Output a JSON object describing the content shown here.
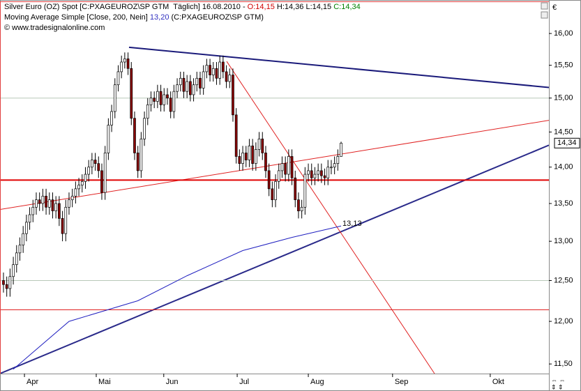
{
  "chart_data": {
    "type": "candlestick",
    "header": {
      "title": "Silver Euro (OZ) Spot [C:PXAGEUROZ\\SP GTM  Täglich] 16.08.2010 -",
      "o": "O:14,15",
      "h": "H:14,36",
      "l": "L:14,15",
      "c": "C:14,34",
      "ma_name": "Moving Average Simple [Close, 200, Nein]",
      "ma_value": "13,20",
      "ma_source": "(C:PXAGEUROZ\\SP GTM)",
      "copyright": "© www.tradesignalonline.com"
    },
    "unit": "€",
    "log": true,
    "ylim": [
      11.39,
      16.51
    ],
    "yticks": [
      {
        "value": 11.5,
        "label": "11,50"
      },
      {
        "value": 12,
        "label": "12,00"
      },
      {
        "value": 12.5,
        "label": "12,50"
      },
      {
        "value": 13,
        "label": "13,00"
      },
      {
        "value": 13.5,
        "label": "13,50"
      },
      {
        "value": 14,
        "label": "14,00"
      },
      {
        "value": 14.5,
        "label": "14,50"
      },
      {
        "value": 15,
        "label": "15,00"
      },
      {
        "value": 15.5,
        "label": "15,50"
      },
      {
        "value": 16,
        "label": "16,00"
      }
    ],
    "xlim": [
      -1.06,
      166.4
    ],
    "xticks": [
      {
        "value": 6.4,
        "label": "Apr"
      },
      {
        "value": 28.3,
        "label": "Mai"
      },
      {
        "value": 48.9,
        "label": "Jun"
      },
      {
        "value": 71.3,
        "label": "Jul"
      },
      {
        "value": 93,
        "label": "Aug"
      },
      {
        "value": 118.7,
        "label": "Sep"
      },
      {
        "value": 148.5,
        "label": "Okt"
      }
    ],
    "up_color": "#ffffff",
    "down_color": "#8b0000",
    "outline_color": "#000000",
    "x": [
      0,
      1,
      2,
      3,
      4,
      5,
      6,
      7,
      8,
      9,
      10,
      11,
      12,
      13,
      14,
      15,
      16,
      17,
      18,
      19,
      20,
      21,
      22,
      23,
      24,
      25,
      26,
      27,
      28,
      29,
      30,
      31,
      32,
      33,
      34,
      35,
      36,
      37,
      38,
      39,
      40,
      41,
      42,
      43,
      44,
      45,
      46,
      47,
      48,
      49,
      50,
      51,
      52,
      53,
      54,
      55,
      56,
      57,
      58,
      59,
      60,
      61,
      62,
      63,
      64,
      65,
      66,
      67,
      68,
      69,
      70,
      71,
      72,
      73,
      74,
      75,
      76,
      77,
      78,
      79,
      80,
      81,
      82,
      83,
      84,
      85,
      86,
      87,
      88,
      89,
      90,
      91,
      92,
      93,
      94,
      95,
      96,
      97,
      98,
      99,
      100,
      101,
      102,
      103
    ],
    "open": [
      12.5,
      12.45,
      12.4,
      12.55,
      12.7,
      12.85,
      12.95,
      13.1,
      13.25,
      13.35,
      13.45,
      13.55,
      13.5,
      13.6,
      13.45,
      13.55,
      13.4,
      13.5,
      13.3,
      13.1,
      13.45,
      13.55,
      13.6,
      13.7,
      13.75,
      13.8,
      13.9,
      14.0,
      14.1,
      14.05,
      13.95,
      13.65,
      14.2,
      14.6,
      14.8,
      15.2,
      15.4,
      15.55,
      15.6,
      15.45,
      14.7,
      14.2,
      13.95,
      14.4,
      14.7,
      14.9,
      15.0,
      14.95,
      15.1,
      14.9,
      15.05,
      15.0,
      14.8,
      15.1,
      15.2,
      15.3,
      15.1,
      15.25,
      15.05,
      15.2,
      15.3,
      15.15,
      15.4,
      15.5,
      15.35,
      15.45,
      15.3,
      15.55,
      15.4,
      15.25,
      15.35,
      14.75,
      14.15,
      14.05,
      14.2,
      14.1,
      14.3,
      14.05,
      14.25,
      14.4,
      14.2,
      13.95,
      13.7,
      13.55,
      13.8,
      13.95,
      14.05,
      13.9,
      14.15,
      13.85,
      13.55,
      13.4,
      13.45,
      13.9,
      13.95,
      13.85,
      13.9,
      13.95,
      13.88,
      13.85,
      14.0,
      14.0,
      14.05,
      14.15
    ],
    "high": [
      12.6,
      12.55,
      12.65,
      12.8,
      12.95,
      13.05,
      13.2,
      13.35,
      13.45,
      13.55,
      13.65,
      13.65,
      13.7,
      13.7,
      13.65,
      13.65,
      13.6,
      13.6,
      13.4,
      13.55,
      13.65,
      13.7,
      13.8,
      13.85,
      13.9,
      14.0,
      14.1,
      14.2,
      14.2,
      14.15,
      14.05,
      14.3,
      14.7,
      14.9,
      15.3,
      15.5,
      15.65,
      15.7,
      15.7,
      15.55,
      14.8,
      14.3,
      14.5,
      14.8,
      15.0,
      15.1,
      15.1,
      15.2,
      15.2,
      15.15,
      15.15,
      15.1,
      15.2,
      15.3,
      15.4,
      15.4,
      15.35,
      15.35,
      15.3,
      15.4,
      15.4,
      15.5,
      15.6,
      15.6,
      15.55,
      15.55,
      15.65,
      15.65,
      15.5,
      15.45,
      15.45,
      14.85,
      14.25,
      14.3,
      14.3,
      14.4,
      14.4,
      14.35,
      14.5,
      14.5,
      14.3,
      14.05,
      13.8,
      13.9,
      14.05,
      14.15,
      14.15,
      14.25,
      14.25,
      13.95,
      13.65,
      13.55,
      14.0,
      14.05,
      14.05,
      14.0,
      14.05,
      14.05,
      13.98,
      14.1,
      14.1,
      14.15,
      14.25,
      14.36
    ],
    "low": [
      12.35,
      12.3,
      12.3,
      12.45,
      12.6,
      12.75,
      12.85,
      13.0,
      13.15,
      13.25,
      13.35,
      13.4,
      13.4,
      13.35,
      13.35,
      13.3,
      13.3,
      13.2,
      13.0,
      13.0,
      13.35,
      13.45,
      13.5,
      13.6,
      13.65,
      13.7,
      13.8,
      13.9,
      13.95,
      13.85,
      13.55,
      13.55,
      14.1,
      14.5,
      14.7,
      15.1,
      15.3,
      15.45,
      15.35,
      14.6,
      14.1,
      13.85,
      13.85,
      14.3,
      14.6,
      14.8,
      14.85,
      14.85,
      14.8,
      14.8,
      14.9,
      14.7,
      14.7,
      15.0,
      15.1,
      15.0,
      15.0,
      14.95,
      14.95,
      15.1,
      15.05,
      15.05,
      15.3,
      15.25,
      15.25,
      15.2,
      15.2,
      15.3,
      15.15,
      15.15,
      14.65,
      14.05,
      13.95,
      13.95,
      14.0,
      14.0,
      13.95,
      13.95,
      14.15,
      14.1,
      13.85,
      13.6,
      13.45,
      13.45,
      13.7,
      13.85,
      13.8,
      13.8,
      13.75,
      13.45,
      13.3,
      13.3,
      13.35,
      13.8,
      13.75,
      13.75,
      13.8,
      13.78,
      13.75,
      13.75,
      13.9,
      13.9,
      13.95,
      14.15
    ],
    "close": [
      12.45,
      12.4,
      12.55,
      12.7,
      12.85,
      12.95,
      13.1,
      13.25,
      13.35,
      13.45,
      13.55,
      13.5,
      13.6,
      13.45,
      13.55,
      13.4,
      13.5,
      13.3,
      13.1,
      13.45,
      13.55,
      13.6,
      13.7,
      13.75,
      13.8,
      13.9,
      14.0,
      14.1,
      14.05,
      13.95,
      13.65,
      14.2,
      14.6,
      14.8,
      15.2,
      15.4,
      15.55,
      15.6,
      15.45,
      14.7,
      14.2,
      13.95,
      14.4,
      14.7,
      14.9,
      15.0,
      14.95,
      15.1,
      14.9,
      15.05,
      15.0,
      14.8,
      15.1,
      15.2,
      15.3,
      15.1,
      15.25,
      15.05,
      15.2,
      15.3,
      15.15,
      15.4,
      15.5,
      15.35,
      15.45,
      15.3,
      15.55,
      15.4,
      15.25,
      15.35,
      14.75,
      14.15,
      14.05,
      14.2,
      14.1,
      14.3,
      14.05,
      14.25,
      14.4,
      14.2,
      13.95,
      13.7,
      13.55,
      13.8,
      13.95,
      14.05,
      13.9,
      14.15,
      13.85,
      13.55,
      13.4,
      13.45,
      13.9,
      13.95,
      13.85,
      13.9,
      13.95,
      13.88,
      13.85,
      14.0,
      14.0,
      14.05,
      14.15,
      14.34
    ],
    "last_label": "14,34",
    "ma": {
      "color": "#2020c0",
      "x": [
        3,
        20,
        41,
        56,
        73,
        88,
        103
      ],
      "values": [
        11.44,
        12.0,
        12.25,
        12.56,
        12.88,
        13.05,
        13.2
      ]
    },
    "lines": [
      {
        "color": "#1a1a7a",
        "width": 2,
        "x": [
          38.3,
          166.4
        ],
        "values": [
          15.78,
          15.16
        ]
      },
      {
        "color": "#2a2a8a",
        "width": 2,
        "x": [
          -1.06,
          166.4
        ],
        "values": [
          11.39,
          14.31
        ]
      },
      {
        "color": "#e02020",
        "width": 1,
        "x": [
          -1.06,
          166.4
        ],
        "values": [
          13.42,
          14.67
        ]
      },
      {
        "color": "#e02020",
        "width": 1,
        "x": [
          68.1,
          131.5
        ],
        "values": [
          15.56,
          11.39
        ]
      },
      {
        "color": "#e00000",
        "width": 2,
        "x": [
          -1.06,
          166.4
        ],
        "values": [
          13.82,
          13.82
        ]
      },
      {
        "color": "#e02020",
        "width": 1,
        "x": [
          -1.06,
          166.4
        ],
        "values": [
          12.14,
          12.14
        ]
      },
      {
        "color": "#b8c8b8",
        "width": 1,
        "x": [
          -1.06,
          166.4
        ],
        "values": [
          15.0,
          15.0
        ]
      },
      {
        "color": "#b8c8b8",
        "width": 1,
        "x": [
          -1.06,
          166.4
        ],
        "values": [
          12.5,
          12.5
        ]
      }
    ],
    "annotation": "13,13"
  }
}
